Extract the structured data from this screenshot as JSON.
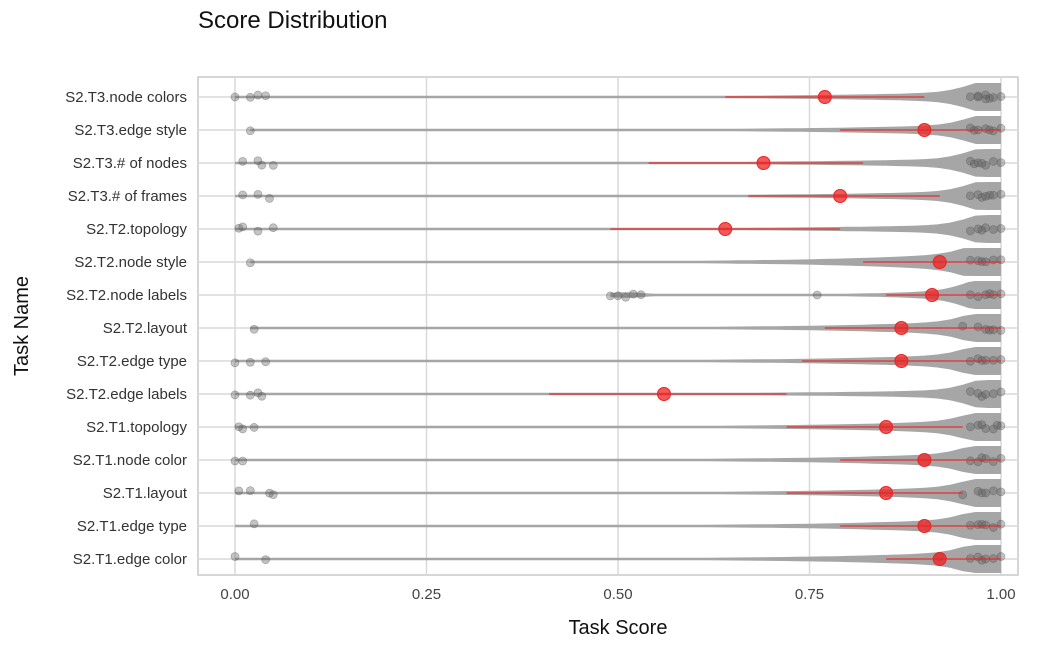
{
  "chart_data": {
    "type": "violin",
    "title": "Score Distribution",
    "xlabel": "Task Score",
    "ylabel": "Task Name",
    "xlim": [
      0,
      1
    ],
    "x_ticks": [
      0,
      0.25,
      0.5,
      0.75,
      1.0
    ],
    "x_tick_labels": [
      "0.00",
      "0.25",
      "0.50",
      "0.75",
      "1.00"
    ],
    "grid": true,
    "colors": {
      "violin": "#a6a6a6",
      "points": "#555555",
      "mean": "#ee2222",
      "grid": "#d9d9d9",
      "panel_border": "#c8c8c8"
    },
    "categories": [
      "S2.T3.node colors",
      "S2.T3.edge style",
      "S2.T3.# of nodes",
      "S2.T3.# of frames",
      "S2.T2.topology",
      "S2.T2.node style",
      "S2.T2.node labels",
      "S2.T2.layout",
      "S2.T2.edge type",
      "S2.T2.edge labels",
      "S2.T1.topology",
      "S2.T1.node color",
      "S2.T1.layout",
      "S2.T1.edge type",
      "S2.T1.edge color"
    ],
    "series": [
      {
        "category": "S2.T3.node colors",
        "mean": 0.77,
        "err": [
          0.64,
          0.9
        ],
        "min": 0.0,
        "peak_width": 0.42,
        "points": [
          0.0,
          0.02,
          0.03,
          0.04,
          0.96,
          0.97,
          0.98,
          0.98,
          0.99,
          1.0,
          0.97,
          0.985
        ]
      },
      {
        "category": "S2.T3.edge style",
        "mean": 0.9,
        "err": [
          0.79,
          1.0
        ],
        "min": 0.02,
        "peak_width": 0.45,
        "points": [
          0.02,
          0.96,
          0.97,
          0.98,
          0.99,
          1.0,
          0.965,
          0.985
        ]
      },
      {
        "category": "S2.T3.# of nodes",
        "mean": 0.69,
        "err": [
          0.54,
          0.82
        ],
        "min": 0.0,
        "peak_width": 0.38,
        "points": [
          0.01,
          0.03,
          0.035,
          0.05,
          0.96,
          0.97,
          0.98,
          0.99,
          1.0,
          0.975,
          0.965
        ]
      },
      {
        "category": "S2.T3.# of frames",
        "mean": 0.79,
        "err": [
          0.67,
          0.92
        ],
        "min": 0.0,
        "peak_width": 0.4,
        "points": [
          0.01,
          0.03,
          0.045,
          0.96,
          0.97,
          0.98,
          0.99,
          1.0,
          0.975,
          0.985
        ]
      },
      {
        "category": "S2.T2.topology",
        "mean": 0.64,
        "err": [
          0.49,
          0.79
        ],
        "min": 0.0,
        "peak_width": 0.36,
        "points": [
          0.005,
          0.01,
          0.03,
          0.05,
          0.96,
          0.97,
          0.98,
          0.99,
          1.0,
          0.975
        ]
      },
      {
        "category": "S2.T2.node style",
        "mean": 0.92,
        "err": [
          0.82,
          1.0
        ],
        "min": 0.02,
        "peak_width": 0.78,
        "points": [
          0.02,
          0.96,
          0.97,
          0.98,
          0.99,
          1.0,
          0.975
        ]
      },
      {
        "category": "S2.T2.node labels",
        "mean": 0.91,
        "err": [
          0.85,
          1.0
        ],
        "min": 0.49,
        "peak_width": 0.7,
        "points": [
          0.49,
          0.5,
          0.51,
          0.52,
          0.53,
          0.76,
          0.96,
          0.97,
          0.98,
          0.99,
          1.0,
          0.985
        ]
      },
      {
        "category": "S2.T2.layout",
        "mean": 0.87,
        "err": [
          0.77,
          1.0
        ],
        "min": 0.02,
        "peak_width": 0.6,
        "points": [
          0.025,
          0.95,
          0.97,
          0.98,
          0.99,
          1.0,
          0.985
        ]
      },
      {
        "category": "S2.T2.edge type",
        "mean": 0.87,
        "err": [
          0.74,
          1.0
        ],
        "min": 0.0,
        "peak_width": 0.58,
        "points": [
          0.0,
          0.02,
          0.04,
          0.96,
          0.97,
          0.98,
          0.99,
          1.0,
          0.975
        ]
      },
      {
        "category": "S2.T2.edge labels",
        "mean": 0.56,
        "err": [
          0.41,
          0.72
        ],
        "min": 0.0,
        "peak_width": 0.34,
        "points": [
          0.0,
          0.02,
          0.03,
          0.035,
          0.96,
          0.97,
          0.98,
          0.99,
          1.0,
          0.975
        ]
      },
      {
        "category": "S2.T1.topology",
        "mean": 0.85,
        "err": [
          0.72,
          0.95
        ],
        "min": 0.0,
        "peak_width": 0.55,
        "points": [
          0.005,
          0.01,
          0.025,
          0.96,
          0.97,
          0.98,
          0.99,
          1.0,
          0.975,
          0.995
        ]
      },
      {
        "category": "S2.T1.node color",
        "mean": 0.9,
        "err": [
          0.79,
          1.0
        ],
        "min": 0.0,
        "peak_width": 0.6,
        "points": [
          0.0,
          0.01,
          0.96,
          0.97,
          0.98,
          0.99,
          1.0,
          0.975
        ]
      },
      {
        "category": "S2.T1.layout",
        "mean": 0.85,
        "err": [
          0.72,
          0.95
        ],
        "min": 0.0,
        "peak_width": 0.55,
        "points": [
          0.005,
          0.02,
          0.045,
          0.05,
          0.95,
          0.97,
          0.98,
          0.99,
          1.0,
          0.975
        ]
      },
      {
        "category": "S2.T1.edge type",
        "mean": 0.9,
        "err": [
          0.79,
          1.0
        ],
        "min": 0.0,
        "peak_width": 0.6,
        "points": [
          0.025,
          0.96,
          0.97,
          0.98,
          0.99,
          1.0,
          0.975
        ]
      },
      {
        "category": "S2.T1.edge color",
        "mean": 0.92,
        "err": [
          0.85,
          1.0
        ],
        "min": 0.0,
        "peak_width": 0.62,
        "points": [
          0.0,
          0.04,
          0.92,
          0.96,
          0.97,
          0.98,
          0.99,
          1.0,
          0.975
        ]
      }
    ]
  }
}
